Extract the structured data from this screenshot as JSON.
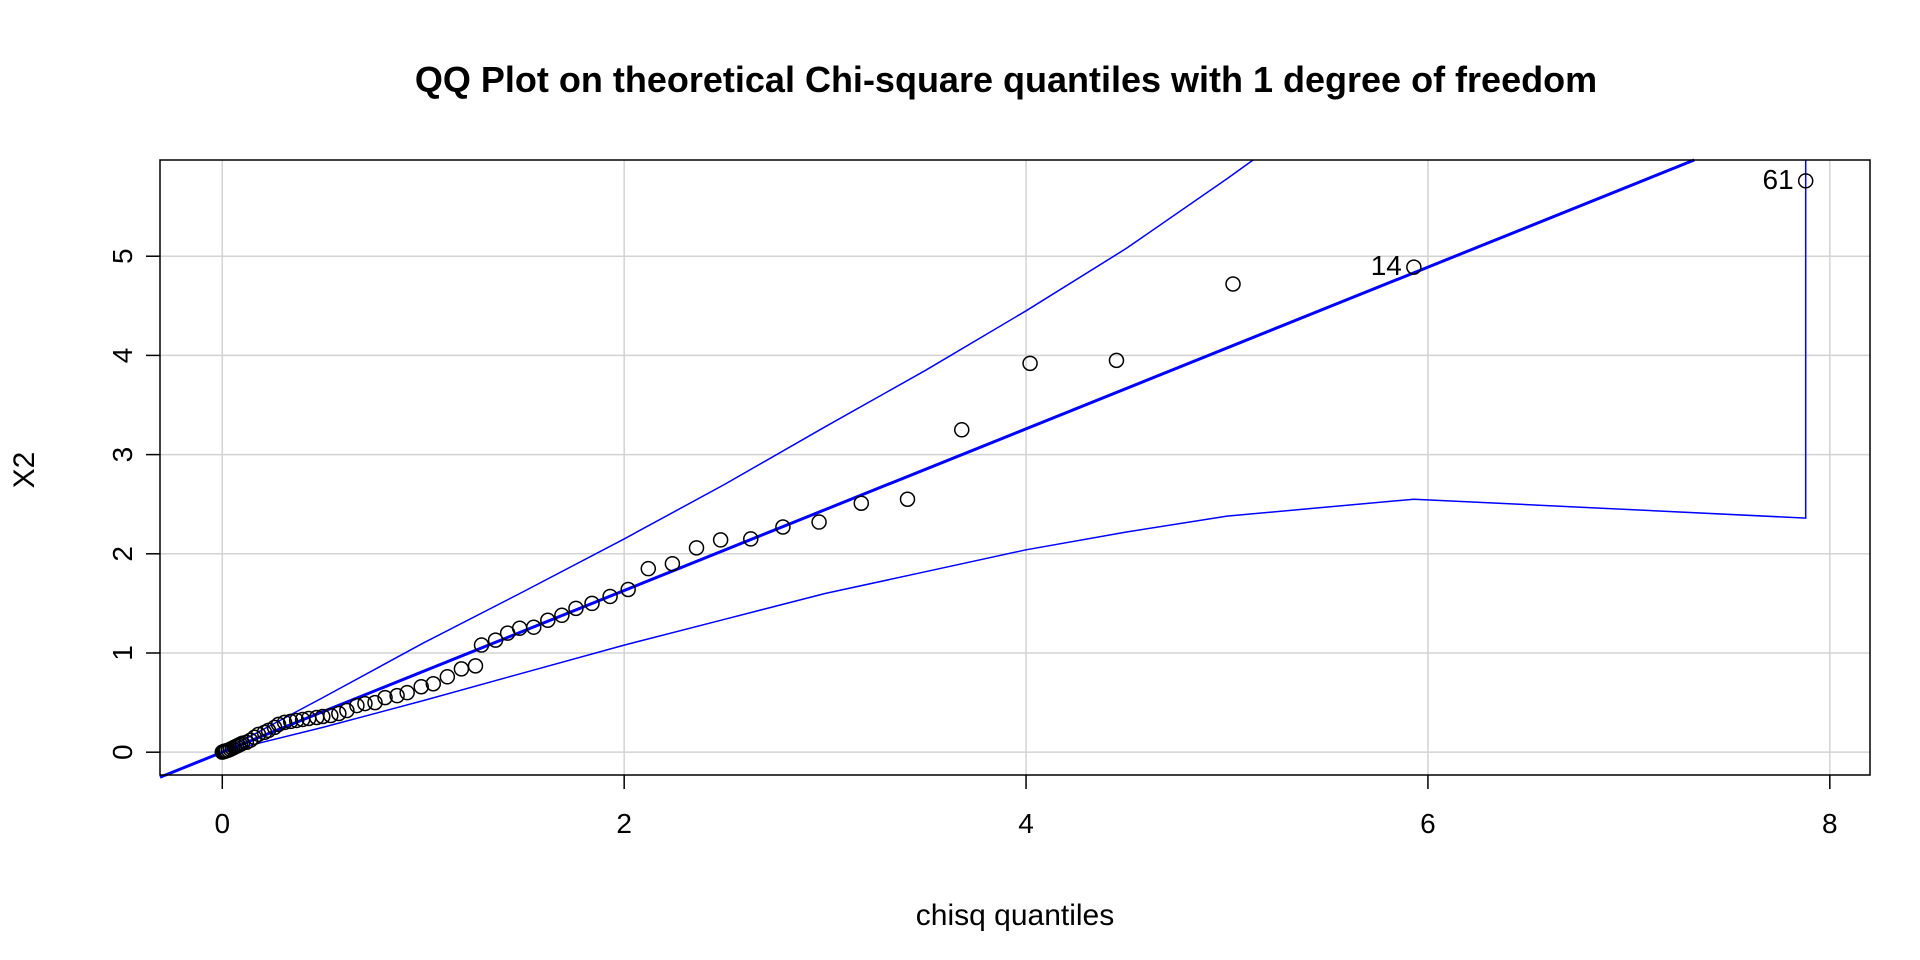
{
  "chart_data": {
    "type": "scatter",
    "title": "QQ Plot on theoretical Chi-square quantiles with 1 degree of freedom",
    "xlabel": "chisq quantiles",
    "ylabel": "X2",
    "xlim": [
      -0.31,
      8.2
    ],
    "ylim": [
      -0.23,
      5.97
    ],
    "xticks": [
      0,
      2,
      4,
      6,
      8
    ],
    "yticks": [
      0,
      1,
      2,
      3,
      4,
      5
    ],
    "grid": true,
    "colors": {
      "points": "#000000",
      "reference": "#0000ff",
      "grid": "#d3d3d3"
    },
    "points": [
      [
        0.0,
        0.0
      ],
      [
        0.005,
        0.005
      ],
      [
        0.01,
        0.01
      ],
      [
        0.015,
        0.01
      ],
      [
        0.02,
        0.015
      ],
      [
        0.03,
        0.02
      ],
      [
        0.04,
        0.03
      ],
      [
        0.05,
        0.04
      ],
      [
        0.06,
        0.05
      ],
      [
        0.07,
        0.06
      ],
      [
        0.08,
        0.07
      ],
      [
        0.09,
        0.08
      ],
      [
        0.1,
        0.09
      ],
      [
        0.12,
        0.1
      ],
      [
        0.14,
        0.12
      ],
      [
        0.16,
        0.15
      ],
      [
        0.18,
        0.18
      ],
      [
        0.21,
        0.2
      ],
      [
        0.23,
        0.22
      ],
      [
        0.26,
        0.25
      ],
      [
        0.28,
        0.28
      ],
      [
        0.31,
        0.3
      ],
      [
        0.34,
        0.31
      ],
      [
        0.37,
        0.32
      ],
      [
        0.4,
        0.33
      ],
      [
        0.43,
        0.34
      ],
      [
        0.47,
        0.35
      ],
      [
        0.5,
        0.36
      ],
      [
        0.54,
        0.37
      ],
      [
        0.58,
        0.39
      ],
      [
        0.62,
        0.42
      ],
      [
        0.67,
        0.47
      ],
      [
        0.71,
        0.49
      ],
      [
        0.76,
        0.5
      ],
      [
        0.81,
        0.55
      ],
      [
        0.87,
        0.57
      ],
      [
        0.92,
        0.6
      ],
      [
        0.99,
        0.66
      ],
      [
        1.05,
        0.69
      ],
      [
        1.12,
        0.76
      ],
      [
        1.19,
        0.84
      ],
      [
        1.26,
        0.87
      ],
      [
        1.29,
        1.08
      ],
      [
        1.36,
        1.13
      ],
      [
        1.42,
        1.2
      ],
      [
        1.48,
        1.25
      ],
      [
        1.55,
        1.26
      ],
      [
        1.62,
        1.33
      ],
      [
        1.69,
        1.38
      ],
      [
        1.76,
        1.45
      ],
      [
        1.84,
        1.5
      ],
      [
        1.93,
        1.57
      ],
      [
        2.02,
        1.64
      ],
      [
        2.12,
        1.85
      ],
      [
        2.24,
        1.9
      ],
      [
        2.36,
        2.06
      ],
      [
        2.48,
        2.14
      ],
      [
        2.63,
        2.15
      ],
      [
        2.79,
        2.27
      ],
      [
        2.97,
        2.32
      ],
      [
        3.18,
        2.51
      ],
      [
        3.41,
        2.55
      ],
      [
        3.68,
        3.25
      ],
      [
        4.02,
        3.92
      ],
      [
        4.45,
        3.95
      ],
      [
        5.03,
        4.72
      ],
      [
        5.93,
        4.89
      ],
      [
        7.88,
        5.76
      ]
    ],
    "point_labels": [
      {
        "text": "14",
        "x": 5.93,
        "y": 4.89
      },
      {
        "text": "61",
        "x": 7.88,
        "y": 5.76
      }
    ],
    "reference_line": {
      "intercept": 0.0,
      "slope": 0.815
    },
    "upper_envelope": [
      [
        0.0,
        0.01
      ],
      [
        0.5,
        0.55
      ],
      [
        1.0,
        1.1
      ],
      [
        1.5,
        1.62
      ],
      [
        2.0,
        2.15
      ],
      [
        2.5,
        2.7
      ],
      [
        3.0,
        3.28
      ],
      [
        3.5,
        3.85
      ],
      [
        4.0,
        4.45
      ],
      [
        4.5,
        5.08
      ],
      [
        5.0,
        5.78
      ],
      [
        5.13,
        5.97
      ]
    ],
    "lower_envelope": [
      [
        0.0,
        0.0
      ],
      [
        0.5,
        0.25
      ],
      [
        1.0,
        0.52
      ],
      [
        1.5,
        0.8
      ],
      [
        2.0,
        1.08
      ],
      [
        2.5,
        1.34
      ],
      [
        3.0,
        1.6
      ],
      [
        3.5,
        1.82
      ],
      [
        4.0,
        2.04
      ],
      [
        4.5,
        2.22
      ],
      [
        5.0,
        2.38
      ],
      [
        5.93,
        2.55
      ],
      [
        7.88,
        2.36
      ],
      [
        7.88,
        5.97
      ]
    ]
  }
}
